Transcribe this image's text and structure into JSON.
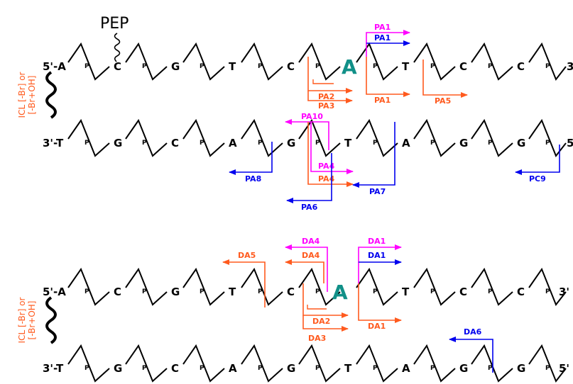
{
  "colors": {
    "magenta": "#ff00ff",
    "blue": "#0000ee",
    "orange": "#ff5a1e",
    "teal": "#119088",
    "black": "#000000"
  },
  "top": {
    "pep_label": "PEP",
    "icl_line1": "ICL [-Br] or",
    "icl_line2": "[-Br+OH]",
    "strand1_end5": "5'-A",
    "strand1_end3": "3'",
    "strand1_bases": [
      "C",
      "G",
      "T",
      "C",
      "A",
      "T",
      "C",
      "C"
    ],
    "strand2_end3": "3'-T",
    "strand2_end5": "5'",
    "strand2_bases": [
      "G",
      "C",
      "A",
      "G",
      "T",
      "A",
      "G",
      "G"
    ],
    "adduct": "A",
    "phosphate": "P",
    "fragments": {
      "pa1_magenta": "PA1",
      "pa1_blue": "PA1",
      "pa1_orange": "PA1",
      "pa2": "PA2",
      "pa3": "PA3",
      "pa5": "PA5",
      "pa10": "PA10",
      "pa4_magenta": "PA4",
      "pa4_orange": "PA4",
      "pa8": "PA8",
      "pa7": "PA7",
      "pa6": "PA6",
      "pc9": "PC9"
    }
  },
  "bottom": {
    "icl_line1": "ICL [-Br] or",
    "icl_line2": "[-Br+OH]",
    "strand1_end5": "5'-A",
    "strand1_end3": "3'",
    "strand1_bases": [
      "C",
      "G",
      "T",
      "C",
      "A",
      "T",
      "C",
      "C"
    ],
    "strand2_end3": "3'-T",
    "strand2_end5": "5'",
    "strand2_bases": [
      "G",
      "C",
      "A",
      "G",
      "T",
      "A",
      "G",
      "G"
    ],
    "adduct": "A",
    "phosphate": "P",
    "fragments": {
      "da4_magenta": "DA4",
      "da4_orange": "DA4",
      "da5": "DA5",
      "da1_magenta": "DA1",
      "da1_blue": "DA1",
      "da1_orange": "DA1",
      "da2": "DA2",
      "da3": "DA3",
      "da6": "DA6"
    }
  }
}
